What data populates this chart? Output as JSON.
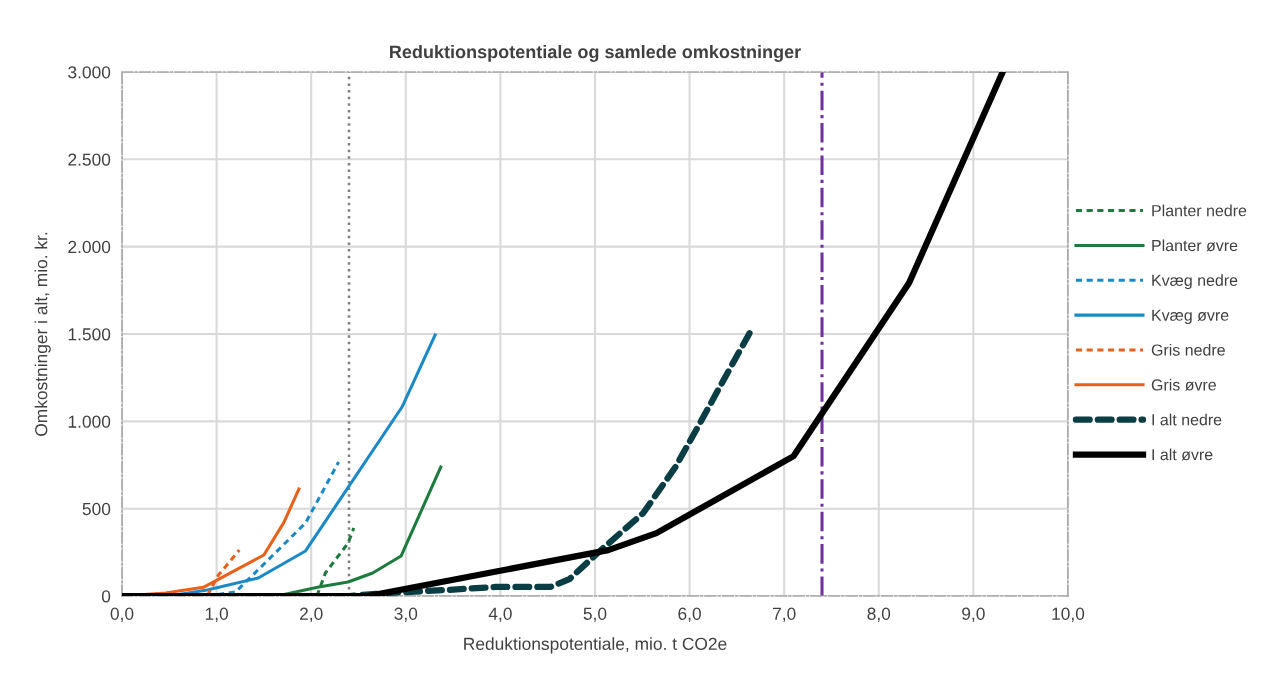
{
  "chart_data": {
    "type": "line",
    "title": "Reduktionspotentiale og samlede omkostninger",
    "xlabel": "Reduktionspotentiale, mio. t CO2e",
    "ylabel": "Omkostninger i alt, mio. kr.",
    "xlim": [
      0,
      10
    ],
    "ylim": [
      0,
      3000
    ],
    "xticks": [
      {
        "value": 0,
        "label": "0,0"
      },
      {
        "value": 1,
        "label": "1,0"
      },
      {
        "value": 2,
        "label": "2,0"
      },
      {
        "value": 3,
        "label": "3,0"
      },
      {
        "value": 4,
        "label": "4,0"
      },
      {
        "value": 5,
        "label": "5,0"
      },
      {
        "value": 6,
        "label": "6,0"
      },
      {
        "value": 7,
        "label": "7,0"
      },
      {
        "value": 8,
        "label": "8,0"
      },
      {
        "value": 9,
        "label": "9,0"
      },
      {
        "value": 10,
        "label": "10,0"
      }
    ],
    "yticks": [
      0,
      500,
      {
        "value": 1000,
        "label": "1.000"
      },
      {
        "value": 1500,
        "label": "1.500"
      },
      {
        "value": 2000,
        "label": "2.000"
      },
      {
        "value": 2500,
        "label": "2.500"
      },
      {
        "value": 3000,
        "label": "3.000"
      }
    ],
    "grid": true,
    "legend": "right",
    "marker": "none",
    "series": [
      {
        "name": "Planter nedre",
        "color": "#1e7b3e",
        "line_style": "dashed",
        "x": [
          2.06,
          2.15,
          2.39,
          2.45
        ],
        "values": [
          0,
          132,
          303,
          389
        ]
      },
      {
        "name": "Planter øvre",
        "color": "#1e7b3e",
        "line_style": "solid",
        "x": [
          0,
          1.64,
          2.08,
          2.39,
          2.65,
          2.95,
          3.37
        ],
        "values": [
          0,
          0,
          52,
          80,
          132,
          229,
          738
        ]
      },
      {
        "name": "Kvæg nedre",
        "color": "#1a8ac6",
        "line_style": "dashed",
        "x": [
          0,
          0.9,
          1.2,
          1.33,
          1.94,
          2.29
        ],
        "values": [
          0,
          0,
          23,
          92,
          418,
          767
        ]
      },
      {
        "name": "Kvæg øvre",
        "color": "#1a8ac6",
        "line_style": "solid",
        "x": [
          0,
          0.5,
          0.9,
          1.44,
          1.94,
          2.96,
          3.31
        ],
        "values": [
          0,
          0,
          35,
          103,
          258,
          1082,
          1494
        ]
      },
      {
        "name": "Gris nedre",
        "color": "#e8611a",
        "line_style": "dashed",
        "x": [
          0,
          0.9,
          1.02,
          1.24
        ],
        "values": [
          0,
          0,
          120,
          263
        ]
      },
      {
        "name": "Gris øvre",
        "color": "#e8611a",
        "line_style": "solid",
        "x": [
          0,
          0.46,
          0.86,
          1.5,
          1.71,
          1.87
        ],
        "values": [
          0,
          17,
          50,
          235,
          420,
          612
        ]
      },
      {
        "name": "I alt nedre",
        "color": "#0b3d45",
        "line_style": "dashed",
        "x": [
          0,
          2.4,
          2.8,
          3.41,
          3.95,
          4.53,
          4.73,
          5.04,
          5.51,
          5.85,
          6.11,
          6.36,
          6.64
        ],
        "values": [
          0,
          0,
          17,
          34,
          52,
          52,
          97,
          252,
          475,
          738,
          990,
          1237,
          1511
        ]
      },
      {
        "name": "I alt øvre",
        "color": "#000000",
        "line_style": "solid",
        "x": [
          0,
          2.6,
          5.14,
          5.65,
          7.1,
          8.32,
          9.31
        ],
        "values": [
          0,
          0,
          263,
          360,
          801,
          1792,
          3000
        ]
      }
    ],
    "ref_lines": [
      {
        "axis": "x",
        "value": 2.4,
        "label": null,
        "color": "#808080",
        "line_style": "dotted"
      },
      {
        "axis": "x",
        "value": 7.4,
        "label": null,
        "color": "#7030a0",
        "line_style": "dashdot"
      }
    ]
  }
}
